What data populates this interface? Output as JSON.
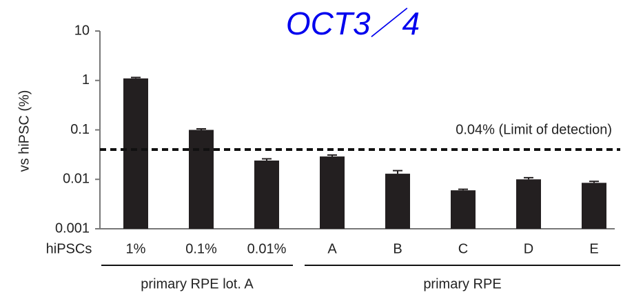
{
  "chart_data": {
    "type": "bar",
    "title": "OCT3／4",
    "y_label": "vs hiPSC (%)",
    "row_label": "hiPSCs",
    "categories": [
      "1%",
      "0.1%",
      "0.01%",
      "A",
      "B",
      "C",
      "D",
      "E"
    ],
    "values": [
      1.1,
      0.1,
      0.024,
      0.029,
      0.013,
      0.006,
      0.01,
      0.0085
    ],
    "errors": [
      0.05,
      0.005,
      0.002,
      0.002,
      0.002,
      0.0003,
      0.0008,
      0.0006
    ],
    "color": "#231f20",
    "log_scale": true,
    "ylim": [
      0.001,
      10
    ],
    "yticks": [
      0.001,
      0.01,
      0.1,
      1,
      10
    ],
    "threshold": {
      "value": 0.04,
      "label": "0.04% (Limit of detection)"
    },
    "groups": [
      {
        "label": "primary RPE lot. A",
        "size": 3
      },
      {
        "label": "primary RPE",
        "size": 5
      }
    ]
  }
}
